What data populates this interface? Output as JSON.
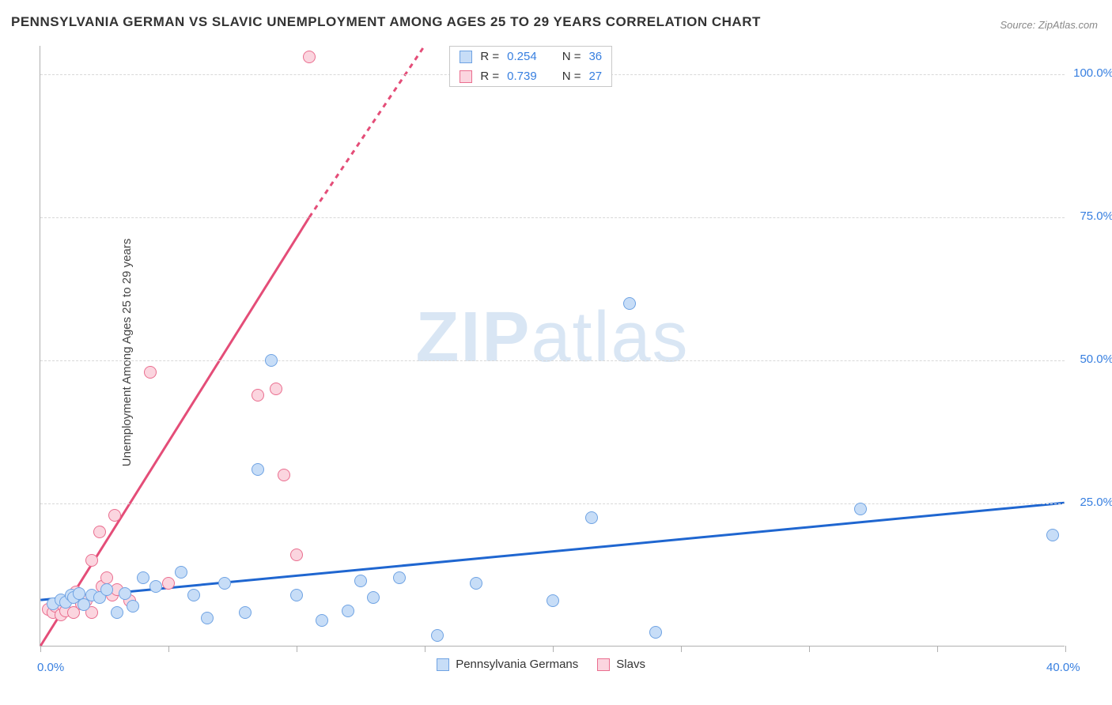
{
  "title": "PENNSYLVANIA GERMAN VS SLAVIC UNEMPLOYMENT AMONG AGES 25 TO 29 YEARS CORRELATION CHART",
  "source": "Source: ZipAtlas.com",
  "ylabel": "Unemployment Among Ages 25 to 29 years",
  "watermark_a": "ZIP",
  "watermark_b": "atlas",
  "chart": {
    "type": "scatter",
    "xlim": [
      0,
      40
    ],
    "ylim": [
      0,
      105
    ],
    "xticks": [
      0,
      5,
      10,
      15,
      20,
      25,
      30,
      35,
      40
    ],
    "xtick_labels": {
      "0": "0.0%",
      "40": "40.0%"
    },
    "yticks": [
      25,
      50,
      75,
      100
    ],
    "ytick_labels": {
      "25": "25.0%",
      "50": "50.0%",
      "75": "75.0%",
      "100": "100.0%"
    },
    "grid_color": "#d8d8d8",
    "axis_color": "#b0b0b0",
    "tick_label_color": "#377fe0",
    "tick_fontsize": 15,
    "background_color": "#ffffff",
    "marker_size": 16,
    "series": [
      {
        "name": "Pennsylvania Germans",
        "color_fill": "#c7ddf7",
        "color_stroke": "#6fa3e3",
        "R": 0.254,
        "N": 36,
        "trend": {
          "color": "#1f66d0",
          "width": 3,
          "dash": "none",
          "x1": 0,
          "y1": 8,
          "x2": 40,
          "y2": 25
        },
        "points": [
          [
            0.5,
            7.5
          ],
          [
            0.8,
            8.2
          ],
          [
            1.0,
            7.8
          ],
          [
            1.2,
            9.0
          ],
          [
            1.3,
            8.5
          ],
          [
            1.5,
            9.2
          ],
          [
            1.7,
            7.3
          ],
          [
            2.0,
            9.0
          ],
          [
            2.3,
            8.5
          ],
          [
            2.6,
            10.0
          ],
          [
            3.0,
            6.0
          ],
          [
            3.3,
            9.3
          ],
          [
            3.6,
            7.0
          ],
          [
            4.0,
            12.0
          ],
          [
            4.5,
            10.5
          ],
          [
            5.5,
            13.0
          ],
          [
            6.0,
            9.0
          ],
          [
            6.5,
            5.0
          ],
          [
            7.2,
            11.0
          ],
          [
            8.0,
            6.0
          ],
          [
            8.5,
            31.0
          ],
          [
            9.0,
            50.0
          ],
          [
            10.0,
            9.0
          ],
          [
            11.0,
            4.5
          ],
          [
            12.0,
            6.2
          ],
          [
            12.5,
            11.5
          ],
          [
            13.0,
            8.5
          ],
          [
            14.0,
            12.0
          ],
          [
            15.5,
            2.0
          ],
          [
            17.0,
            11.0
          ],
          [
            20.0,
            8.0
          ],
          [
            21.5,
            22.5
          ],
          [
            23.0,
            60.0
          ],
          [
            24.0,
            2.5
          ],
          [
            32.0,
            24.0
          ],
          [
            39.5,
            19.5
          ]
        ]
      },
      {
        "name": "Slavs",
        "color_fill": "#fbd5df",
        "color_stroke": "#ea6e8f",
        "R": 0.739,
        "N": 27,
        "trend": {
          "color": "#e44d78",
          "width": 3,
          "dash": "none",
          "x1": 0,
          "y1": 0,
          "x2": 10.5,
          "y2": 75,
          "ext_dash": "6,6",
          "ext_x2": 15,
          "ext_y2": 105
        },
        "points": [
          [
            0.3,
            6.5
          ],
          [
            0.5,
            6.0
          ],
          [
            0.6,
            7.0
          ],
          [
            0.8,
            5.5
          ],
          [
            0.9,
            7.2
          ],
          [
            1.0,
            6.2
          ],
          [
            1.2,
            8.8
          ],
          [
            1.3,
            6.0
          ],
          [
            1.4,
            9.5
          ],
          [
            1.6,
            7.5
          ],
          [
            1.8,
            8.0
          ],
          [
            2.0,
            15.0
          ],
          [
            2.0,
            6.0
          ],
          [
            2.3,
            20.0
          ],
          [
            2.4,
            10.5
          ],
          [
            2.6,
            12.0
          ],
          [
            2.8,
            9.0
          ],
          [
            2.9,
            23.0
          ],
          [
            3.0,
            10.0
          ],
          [
            3.5,
            8.0
          ],
          [
            4.3,
            48.0
          ],
          [
            5.0,
            11.0
          ],
          [
            8.5,
            44.0
          ],
          [
            9.2,
            45.0
          ],
          [
            9.5,
            30.0
          ],
          [
            10.0,
            16.0
          ],
          [
            10.5,
            103.0
          ]
        ]
      }
    ]
  },
  "statbox": {
    "rows": [
      {
        "swatch_fill": "#c7ddf7",
        "swatch_stroke": "#6fa3e3",
        "r_label": "R =",
        "r_value": "0.254",
        "n_label": "N =",
        "n_value": "36"
      },
      {
        "swatch_fill": "#fbd5df",
        "swatch_stroke": "#ea6e8f",
        "r_label": "R =",
        "r_value": "0.739",
        "n_label": "N =",
        "n_value": "27"
      }
    ]
  },
  "legend": {
    "items": [
      {
        "swatch_fill": "#c7ddf7",
        "swatch_stroke": "#6fa3e3",
        "label": "Pennsylvania Germans"
      },
      {
        "swatch_fill": "#fbd5df",
        "swatch_stroke": "#ea6e8f",
        "label": "Slavs"
      }
    ]
  }
}
